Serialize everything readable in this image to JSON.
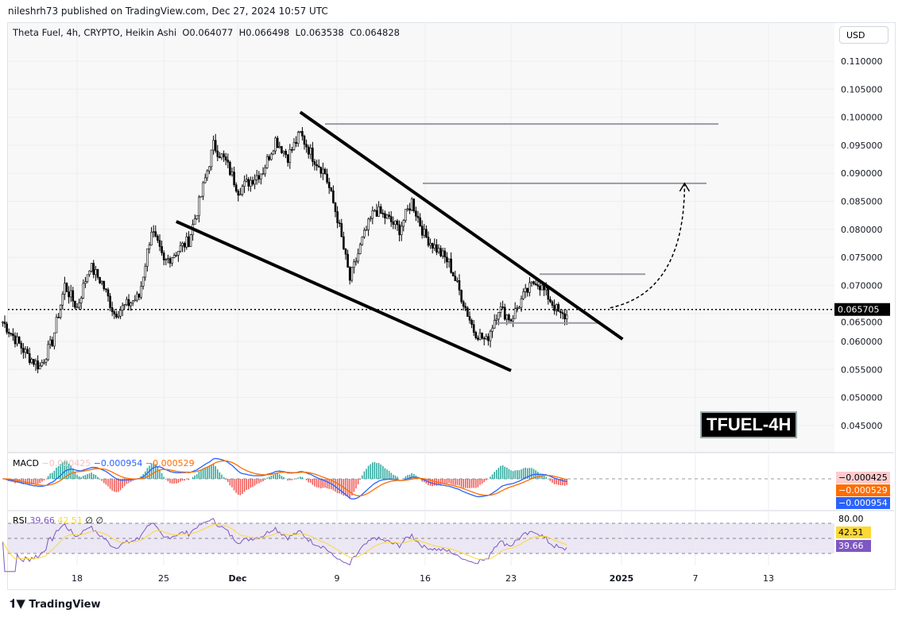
{
  "header": {
    "published": "nileshrh73 published on TradingView.com, Dec 27, 2024 10:57 UTC"
  },
  "legend": {
    "symbol": "Theta Fuel, 4h, CRYPTO, Heikin Ashi",
    "open": "O0.064077",
    "high": "H0.066498",
    "low": "L0.063538",
    "close": "C0.064828"
  },
  "currency": "USD",
  "badge": "TFUEL-4H",
  "footer": {
    "logo": "TradingView"
  },
  "macd": {
    "label": "MACD",
    "hist": "−0.000425",
    "macd": "−0.000954",
    "signal": "−0.000529",
    "colors": {
      "macd": "#2962ff",
      "signal": "#ff6d00",
      "hist_up": "#26a69a",
      "hist_down": "#ef5350"
    }
  },
  "rsi": {
    "label": "RSI",
    "value": "39.66",
    "ma": "42.51",
    "extra": "∅ ∅",
    "upper": "80.00",
    "color": "#7e57c2",
    "ma_color": "#fdd835"
  },
  "chart_data": {
    "type": "candlestick",
    "style": "Heikin Ashi",
    "interval": "4h",
    "ylim": [
      0.0425,
      0.1125
    ],
    "yticks": [
      "0.110000",
      "0.105000",
      "0.100000",
      "0.095000",
      "0.090000",
      "0.085000",
      "0.080000",
      "0.075000",
      "0.070000",
      "0.065000",
      "0.060000",
      "0.055000",
      "0.050000",
      "0.045000"
    ],
    "xticks": [
      "18",
      "25",
      "Dec",
      "9",
      "16",
      "23",
      "2025",
      "7",
      "13"
    ],
    "last_price": "0.065705",
    "approx_close_path": [
      [
        "Nov 12",
        0.0635
      ],
      [
        "Nov 14",
        0.0575
      ],
      [
        "Nov 15",
        0.0555
      ],
      [
        "Nov 16",
        0.06
      ],
      [
        "Nov 17",
        0.07
      ],
      [
        "Nov 18",
        0.066
      ],
      [
        "Nov 19",
        0.0735
      ],
      [
        "Nov 20",
        0.0705
      ],
      [
        "Nov 21",
        0.065
      ],
      [
        "Nov 23",
        0.068
      ],
      [
        "Nov 24",
        0.08
      ],
      [
        "Nov 25",
        0.074
      ],
      [
        "Nov 27",
        0.078
      ],
      [
        "Nov 28",
        0.086
      ],
      [
        "Nov 29",
        0.095
      ],
      [
        "Nov 30",
        0.092
      ],
      [
        "Dec 1",
        0.087
      ],
      [
        "Dec 3",
        0.0905
      ],
      [
        "Dec 4",
        0.096
      ],
      [
        "Dec 5",
        0.093
      ],
      [
        "Dec 6",
        0.097
      ],
      [
        "Dec 7",
        0.093
      ],
      [
        "Dec 8",
        0.09
      ],
      [
        "Dec 9",
        0.082
      ],
      [
        "Dec 10",
        0.071
      ],
      [
        "Dec 11",
        0.078
      ],
      [
        "Dec 12",
        0.0835
      ],
      [
        "Dec 13",
        0.082
      ],
      [
        "Dec 14",
        0.08
      ],
      [
        "Dec 15",
        0.085
      ],
      [
        "Dec 16",
        0.079
      ],
      [
        "Dec 18",
        0.074
      ],
      [
        "Dec 19",
        0.068
      ],
      [
        "Dec 20",
        0.062
      ],
      [
        "Dec 21",
        0.06
      ],
      [
        "Dec 22",
        0.066
      ],
      [
        "Dec 23",
        0.064
      ],
      [
        "Dec 24",
        0.068
      ],
      [
        "Dec 25",
        0.071
      ],
      [
        "Dec 26",
        0.068
      ],
      [
        "Dec 27",
        0.0645
      ]
    ],
    "trendlines": [
      {
        "from": [
          "Dec 6",
          0.1009
        ],
        "to": [
          "Jan 1",
          0.0604
        ]
      },
      {
        "from": [
          "Nov 26",
          0.0814
        ],
        "to": [
          "Dec 23",
          0.0548
        ]
      }
    ],
    "levels": [
      0.0988,
      0.0882,
      0.072,
      0.0633
    ],
    "projection": {
      "from": [
        "Dec 31",
        0.066
      ],
      "to": [
        "Jan 6",
        0.0882
      ]
    }
  }
}
